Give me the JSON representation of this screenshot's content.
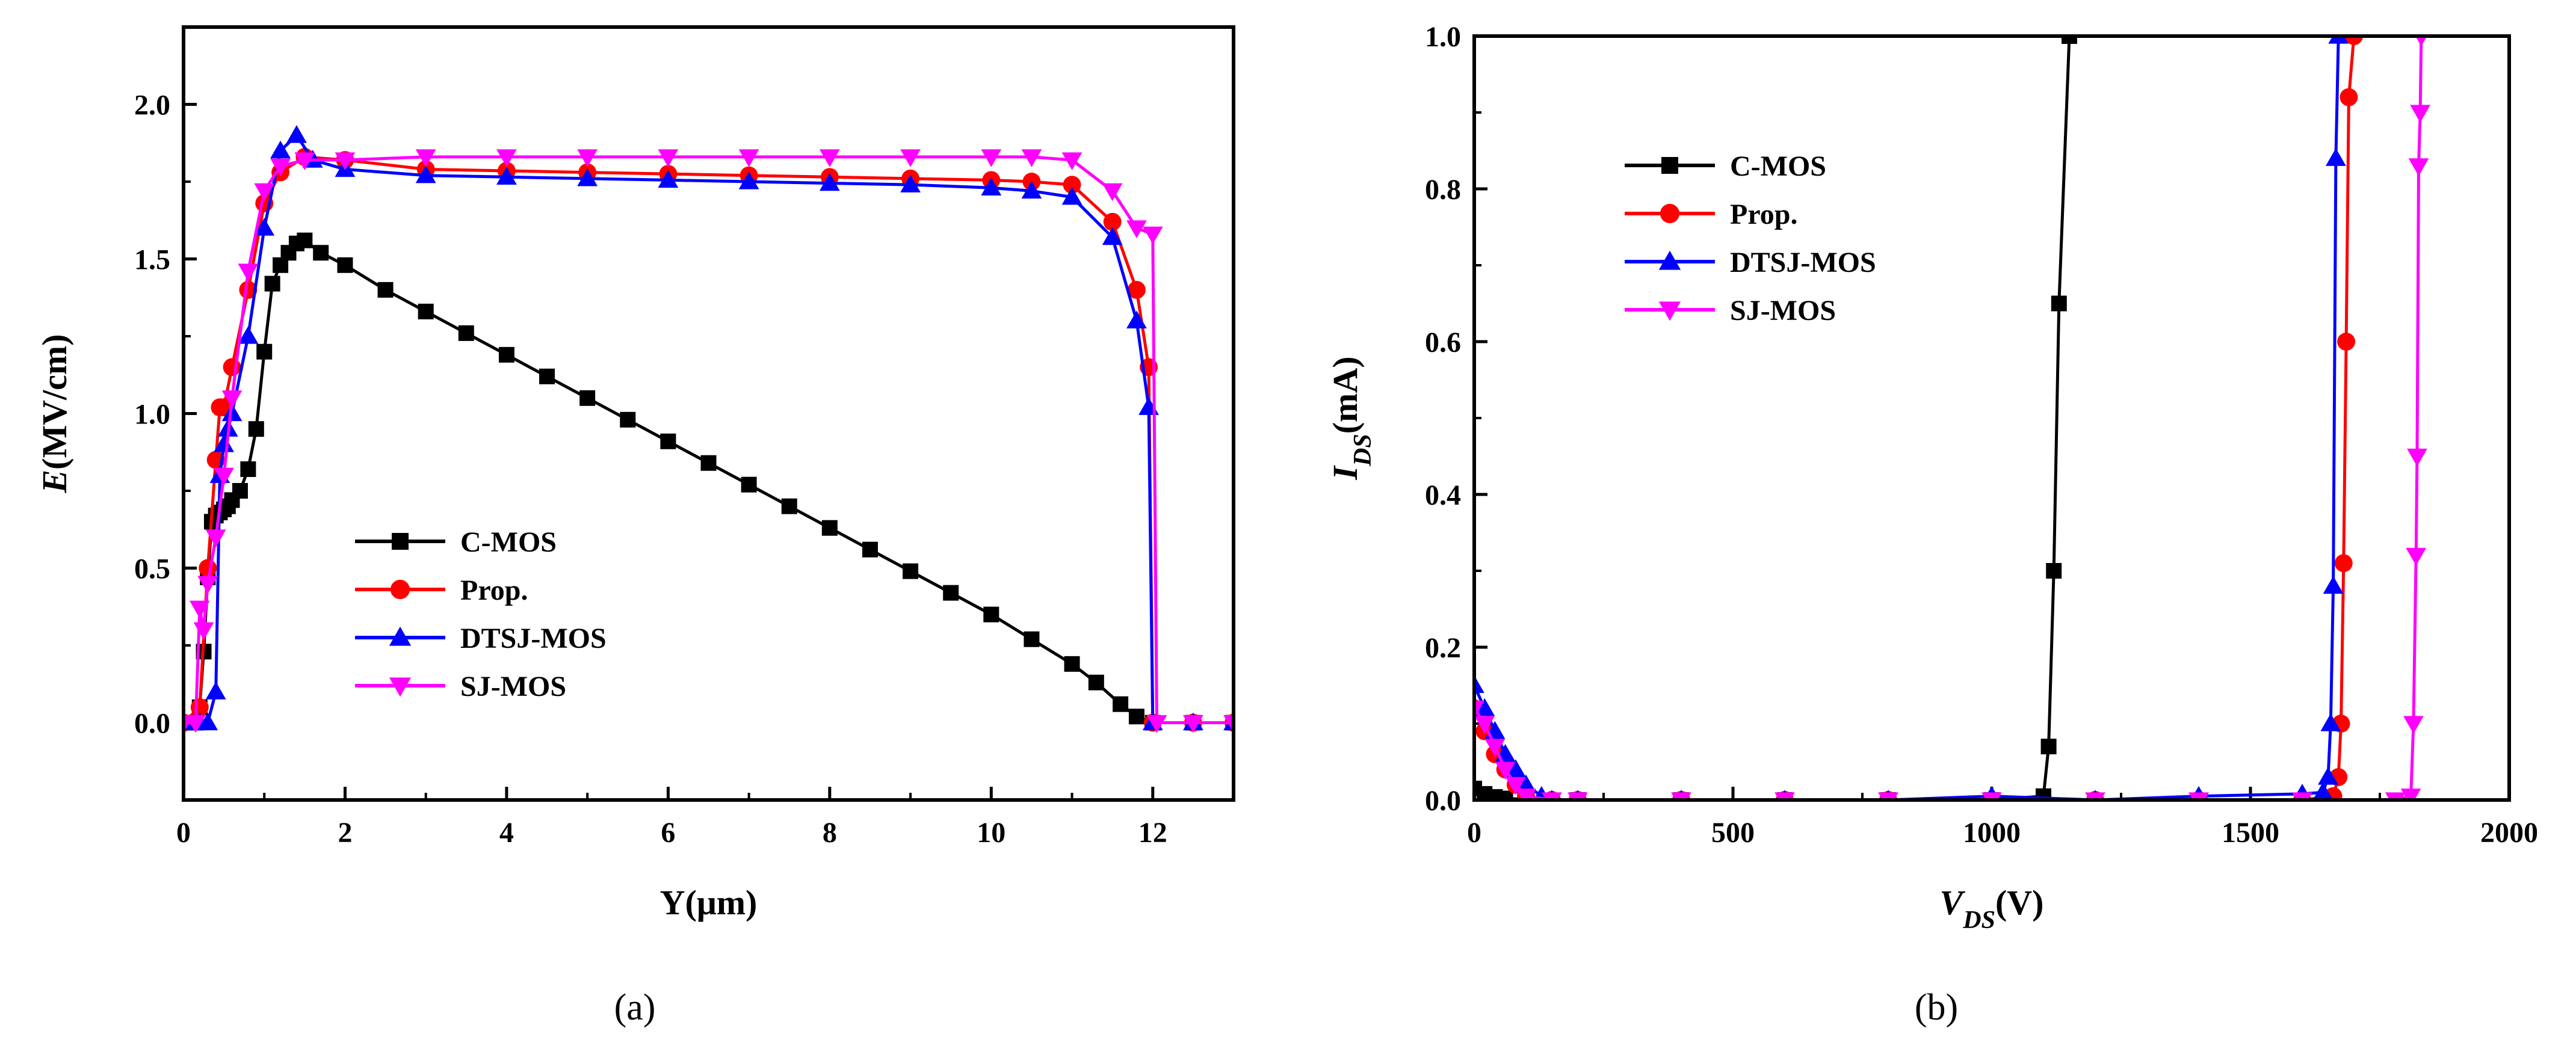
{
  "chart_data": [
    {
      "type": "line",
      "caption": "(a)",
      "xlabel": "Y(μm)",
      "ylabel": "E(MV/cm)",
      "xlim": [
        0,
        13
      ],
      "ylim": [
        -0.25,
        2.25
      ],
      "xticks": [
        0,
        2,
        4,
        6,
        8,
        10,
        12
      ],
      "yticks": [
        0.0,
        0.5,
        1.0,
        1.5,
        2.0
      ],
      "legend": {
        "position": "lower-left"
      },
      "series": [
        {
          "name": "C-MOS",
          "color": "#000000",
          "marker": "square",
          "x": [
            0,
            0.15,
            0.2,
            0.25,
            0.3,
            0.35,
            0.4,
            0.45,
            0.5,
            0.55,
            0.6,
            0.7,
            0.8,
            0.9,
            1.0,
            1.1,
            1.2,
            1.3,
            1.4,
            1.5,
            1.7,
            2.0,
            2.5,
            3.0,
            3.5,
            4.0,
            4.5,
            5.0,
            5.5,
            6.0,
            6.5,
            7.0,
            7.5,
            8.0,
            8.5,
            9.0,
            9.5,
            10.0,
            10.5,
            11.0,
            11.3,
            11.6,
            11.8,
            12.0,
            12.5,
            13.0
          ],
          "y": [
            0.0,
            0.0,
            0.05,
            0.23,
            0.47,
            0.65,
            0.67,
            0.68,
            0.69,
            0.7,
            0.72,
            0.75,
            0.82,
            0.95,
            1.2,
            1.42,
            1.48,
            1.52,
            1.55,
            1.56,
            1.52,
            1.48,
            1.4,
            1.33,
            1.26,
            1.19,
            1.12,
            1.05,
            0.98,
            0.91,
            0.84,
            0.77,
            0.7,
            0.63,
            0.56,
            0.49,
            0.42,
            0.35,
            0.27,
            0.19,
            0.13,
            0.06,
            0.02,
            0.0,
            0.0,
            0.0
          ]
        },
        {
          "name": "Prop.",
          "color": "#ff0000",
          "marker": "circle",
          "x": [
            0,
            0.2,
            0.3,
            0.4,
            0.45,
            0.5,
            0.6,
            0.8,
            1.0,
            1.2,
            1.5,
            2.0,
            3.0,
            4.0,
            5.0,
            6.0,
            7.0,
            8.0,
            9.0,
            10.0,
            10.5,
            11.0,
            11.5,
            11.8,
            11.95,
            12.0,
            12.5,
            13.0
          ],
          "y": [
            0.0,
            0.05,
            0.5,
            0.85,
            1.02,
            1.02,
            1.15,
            1.4,
            1.68,
            1.78,
            1.83,
            1.82,
            1.79,
            1.785,
            1.78,
            1.775,
            1.77,
            1.765,
            1.76,
            1.755,
            1.75,
            1.74,
            1.62,
            1.4,
            1.15,
            0.0,
            0.0,
            0.0
          ]
        },
        {
          "name": "DTSJ-MOS",
          "color": "#0000ff",
          "marker": "triangle-up",
          "x": [
            0,
            0.2,
            0.3,
            0.4,
            0.45,
            0.5,
            0.55,
            0.6,
            0.8,
            1.0,
            1.2,
            1.4,
            1.6,
            2.0,
            3.0,
            4.0,
            5.0,
            6.0,
            7.0,
            8.0,
            9.0,
            10.0,
            10.5,
            11.0,
            11.5,
            11.8,
            11.95,
            12.0,
            12.5,
            13.0
          ],
          "y": [
            0.0,
            0.0,
            0.0,
            0.1,
            0.8,
            0.9,
            0.95,
            1.0,
            1.25,
            1.6,
            1.85,
            1.9,
            1.82,
            1.79,
            1.77,
            1.765,
            1.76,
            1.755,
            1.75,
            1.745,
            1.74,
            1.73,
            1.72,
            1.7,
            1.57,
            1.3,
            1.02,
            0.0,
            0.0,
            0.0
          ]
        },
        {
          "name": "SJ-MOS",
          "color": "#ff00ff",
          "marker": "triangle-down",
          "x": [
            0,
            0.15,
            0.2,
            0.25,
            0.3,
            0.4,
            0.5,
            0.6,
            0.8,
            1.0,
            1.2,
            1.5,
            2.0,
            3.0,
            4.0,
            5.0,
            6.0,
            7.0,
            8.0,
            9.0,
            10.0,
            10.5,
            11.0,
            11.5,
            11.8,
            12.0,
            12.05,
            12.5,
            13.0
          ],
          "y": [
            0.0,
            0.0,
            0.37,
            0.3,
            0.45,
            0.6,
            0.8,
            1.05,
            1.46,
            1.72,
            1.8,
            1.82,
            1.82,
            1.83,
            1.83,
            1.83,
            1.83,
            1.83,
            1.83,
            1.83,
            1.83,
            1.83,
            1.82,
            1.72,
            1.6,
            1.58,
            0.0,
            0.0,
            0.0
          ]
        }
      ]
    },
    {
      "type": "line",
      "caption": "(b)",
      "xlabel": "V_DS(V)",
      "ylabel": "I_DS(mA)",
      "xlim": [
        0,
        2000
      ],
      "ylim": [
        0,
        1.0
      ],
      "xticks": [
        0,
        500,
        1000,
        1500,
        2000
      ],
      "yticks": [
        0.0,
        0.2,
        0.4,
        0.6,
        0.8,
        1.0
      ],
      "legend": {
        "position": "upper-left"
      },
      "series": [
        {
          "name": "C-MOS",
          "color": "#000000",
          "marker": "square",
          "x": [
            0,
            20,
            40,
            60,
            100,
            200,
            400,
            600,
            800,
            1000,
            1100,
            1110,
            1120,
            1130,
            1150
          ],
          "y": [
            0.015,
            0.008,
            0.004,
            0.002,
            0.001,
            0.0,
            0.0,
            0.0,
            0.0,
            0.0,
            0.005,
            0.07,
            0.3,
            0.65,
            1.0
          ]
        },
        {
          "name": "Prop.",
          "color": "#ff0000",
          "marker": "circle",
          "x": [
            0,
            20,
            40,
            60,
            80,
            100,
            150,
            200,
            400,
            600,
            800,
            1000,
            1200,
            1400,
            1600,
            1660,
            1670,
            1675,
            1680,
            1685,
            1690,
            1700
          ],
          "y": [
            0.12,
            0.09,
            0.06,
            0.04,
            0.02,
            0.005,
            0.0,
            0.0,
            0.0,
            0.0,
            0.0,
            0.0,
            0.0,
            0.0,
            0.0,
            0.005,
            0.03,
            0.1,
            0.31,
            0.6,
            0.92,
            1.0
          ]
        },
        {
          "name": "DTSJ-MOS",
          "color": "#0000ff",
          "marker": "triangle-up",
          "x": [
            0,
            20,
            40,
            60,
            80,
            100,
            130,
            150,
            200,
            400,
            600,
            800,
            1000,
            1200,
            1400,
            1600,
            1640,
            1650,
            1655,
            1660,
            1665,
            1670
          ],
          "y": [
            0.15,
            0.12,
            0.09,
            0.06,
            0.04,
            0.02,
            0.005,
            0.0,
            0.0,
            0.0,
            0.0,
            0.0,
            0.005,
            0.0,
            0.005,
            0.008,
            0.01,
            0.03,
            0.1,
            0.28,
            0.84,
            1.0
          ]
        },
        {
          "name": "SJ-MOS",
          "color": "#ff00ff",
          "marker": "triangle-down",
          "x": [
            0,
            20,
            40,
            60,
            80,
            100,
            150,
            200,
            400,
            600,
            800,
            1000,
            1200,
            1400,
            1600,
            1780,
            1810,
            1815,
            1820,
            1822,
            1825,
            1828,
            1830
          ],
          "y": [
            0.12,
            0.1,
            0.07,
            0.04,
            0.02,
            0.005,
            0.0,
            0.0,
            0.0,
            0.0,
            0.0,
            0.0,
            0.0,
            0.0,
            0.0,
            0.0,
            0.005,
            0.1,
            0.32,
            0.45,
            0.83,
            0.9,
            1.0
          ]
        }
      ]
    }
  ]
}
